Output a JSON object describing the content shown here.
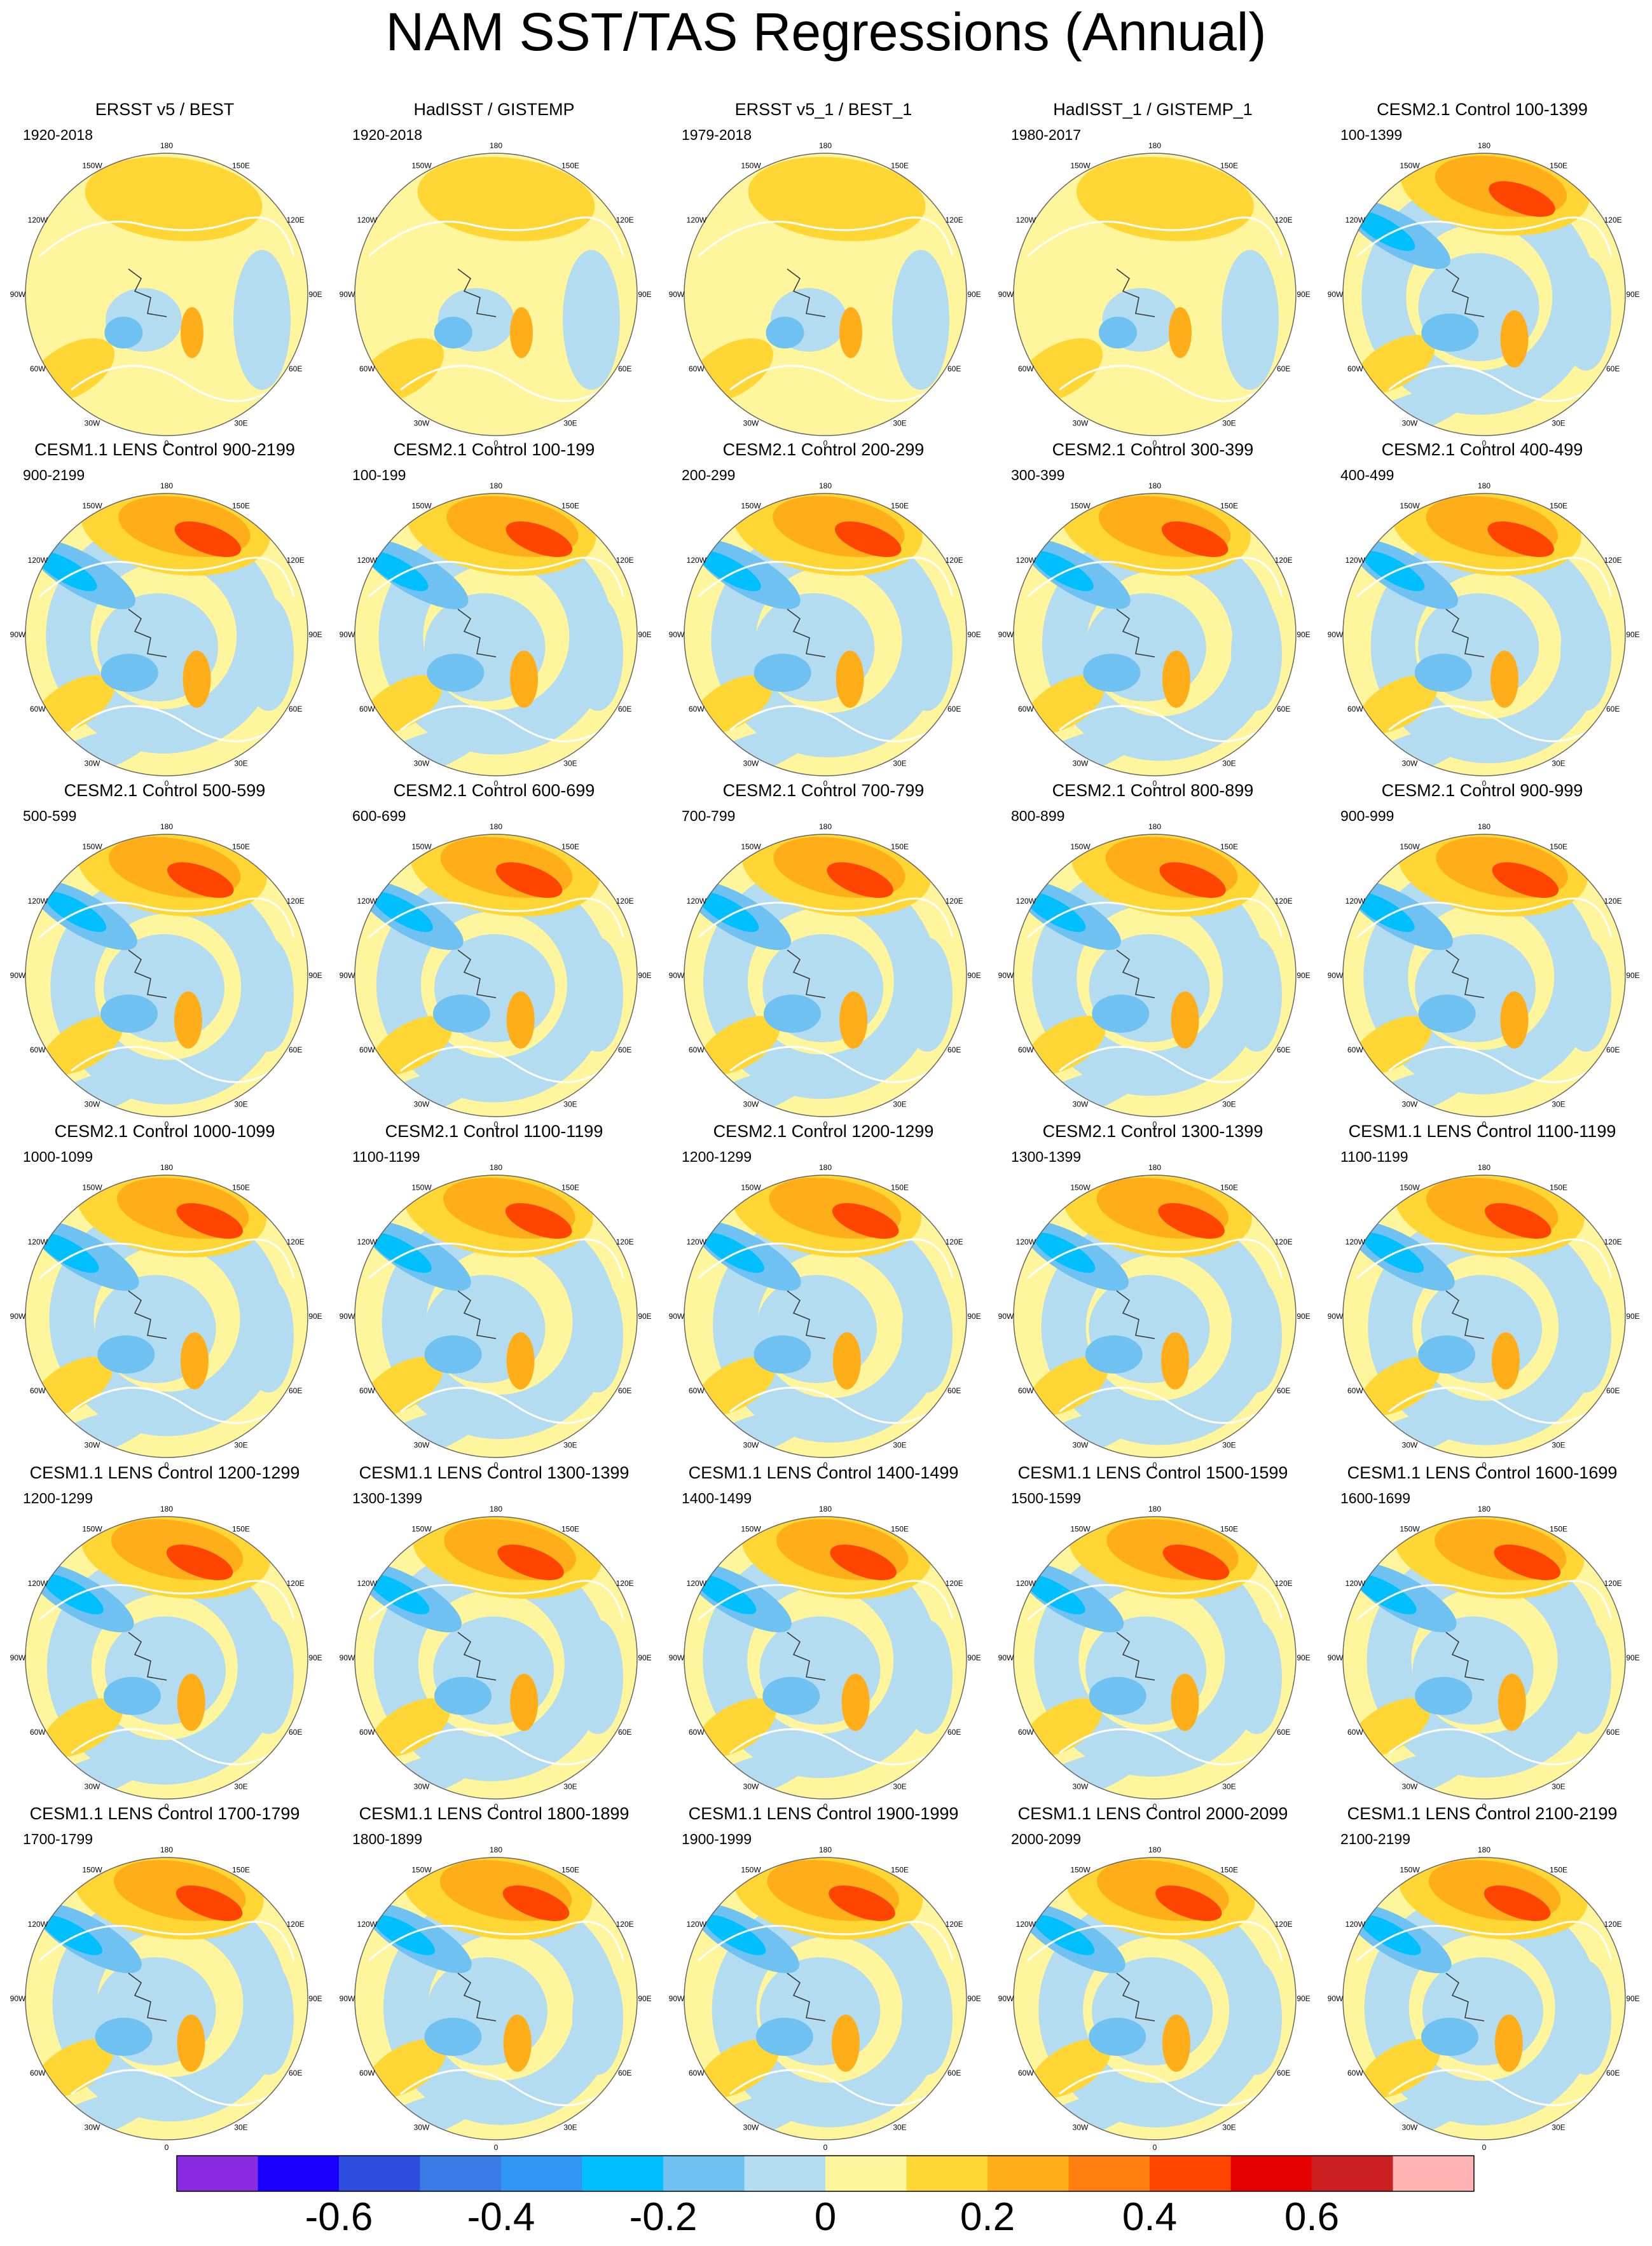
{
  "title": "NAM SST/TAS Regressions (Annual)",
  "colors": {
    "land_outline": "#ffffff",
    "coast": "#333333",
    "neutral_pos": "#fff59d",
    "neutral_neg": "#b3dcf0"
  },
  "longitude_labels": [
    "180",
    "150E",
    "120E",
    "90E",
    "60E",
    "30E",
    "0",
    "30W",
    "60W",
    "90W",
    "120W",
    "150W"
  ],
  "panels": [
    {
      "title": "ERSST v5 / BEST",
      "years": "1920-2018",
      "pattern": "obs"
    },
    {
      "title": "HadISST / GISTEMP",
      "years": "1920-2018",
      "pattern": "obs"
    },
    {
      "title": "ERSST v5_1 / BEST_1",
      "years": "1979-2018",
      "pattern": "obs"
    },
    {
      "title": "HadISST_1 / GISTEMP_1",
      "years": "1980-2017",
      "pattern": "obs"
    },
    {
      "title": "CESM2.1 Control 100-1399",
      "years": "100-1399",
      "pattern": "model"
    },
    {
      "title": "CESM1.1 LENS Control 900-2199",
      "years": "900-2199",
      "pattern": "model"
    },
    {
      "title": "CESM2.1 Control 100-199",
      "years": "100-199",
      "pattern": "model"
    },
    {
      "title": "CESM2.1 Control 200-299",
      "years": "200-299",
      "pattern": "model"
    },
    {
      "title": "CESM2.1 Control 300-399",
      "years": "300-399",
      "pattern": "model"
    },
    {
      "title": "CESM2.1 Control 400-499",
      "years": "400-499",
      "pattern": "model"
    },
    {
      "title": "CESM2.1 Control 500-599",
      "years": "500-599",
      "pattern": "model"
    },
    {
      "title": "CESM2.1 Control 600-699",
      "years": "600-699",
      "pattern": "model"
    },
    {
      "title": "CESM2.1 Control 700-799",
      "years": "700-799",
      "pattern": "model"
    },
    {
      "title": "CESM2.1 Control 800-899",
      "years": "800-899",
      "pattern": "model"
    },
    {
      "title": "CESM2.1 Control 900-999",
      "years": "900-999",
      "pattern": "model"
    },
    {
      "title": "CESM2.1 Control 1000-1099",
      "years": "1000-1099",
      "pattern": "model"
    },
    {
      "title": "CESM2.1 Control 1100-1199",
      "years": "1100-1199",
      "pattern": "model"
    },
    {
      "title": "CESM2.1 Control 1200-1299",
      "years": "1200-1299",
      "pattern": "model"
    },
    {
      "title": "CESM2.1 Control 1300-1399",
      "years": "1300-1399",
      "pattern": "model"
    },
    {
      "title": "CESM1.1 LENS Control 1100-1199",
      "years": "1100-1199",
      "pattern": "model"
    },
    {
      "title": "CESM1.1 LENS Control 1200-1299",
      "years": "1200-1299",
      "pattern": "model"
    },
    {
      "title": "CESM1.1 LENS Control 1300-1399",
      "years": "1300-1399",
      "pattern": "model"
    },
    {
      "title": "CESM1.1 LENS Control 1400-1499",
      "years": "1400-1499",
      "pattern": "model"
    },
    {
      "title": "CESM1.1 LENS Control 1500-1599",
      "years": "1500-1599",
      "pattern": "model"
    },
    {
      "title": "CESM1.1 LENS Control 1600-1699",
      "years": "1600-1699",
      "pattern": "model"
    },
    {
      "title": "CESM1.1 LENS Control 1700-1799",
      "years": "1700-1799",
      "pattern": "model"
    },
    {
      "title": "CESM1.1 LENS Control 1800-1899",
      "years": "1800-1899",
      "pattern": "model"
    },
    {
      "title": "CESM1.1 LENS Control 1900-1999",
      "years": "1900-1999",
      "pattern": "model"
    },
    {
      "title": "CESM1.1 LENS Control 2000-2099",
      "years": "2000-2099",
      "pattern": "model"
    },
    {
      "title": "CESM1.1 LENS Control 2100-2199",
      "years": "2100-2199",
      "pattern": "model"
    }
  ],
  "colorbar": {
    "colors": [
      "#8a2be2",
      "#1a00ff",
      "#2d4fe0",
      "#3a7ae6",
      "#2e95f2",
      "#00bfff",
      "#6ec1f0",
      "#b3dcf0",
      "#fff59d",
      "#ffd633",
      "#ffae1a",
      "#ff7f0e",
      "#ff4500",
      "#e60000",
      "#cc1f1f",
      "#ffb3b3"
    ],
    "tick_labels": [
      "-0.6",
      "-0.4",
      "-0.2",
      "0",
      "0.2",
      "0.4",
      "0.6"
    ]
  }
}
